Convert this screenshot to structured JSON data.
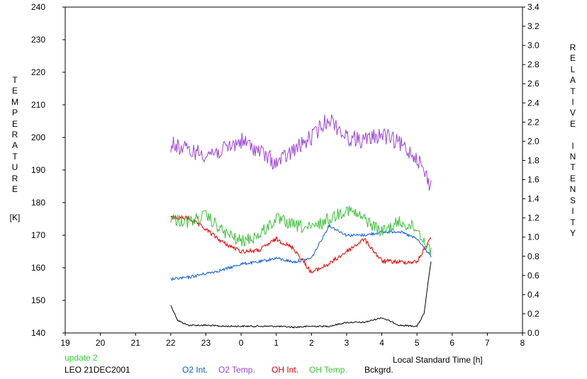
{
  "chart_data": {
    "type": "line",
    "x_axis": {
      "label": "Local Standard Time [h]",
      "ticks": [
        "19",
        "20",
        "21",
        "22",
        "23",
        "0",
        "1",
        "2",
        "3",
        "4",
        "5",
        "6",
        "7",
        "8"
      ],
      "range": [
        19,
        32
      ]
    },
    "y_left": {
      "label_letters": [
        "T",
        "E",
        "M",
        "P",
        "E",
        "R",
        "A",
        "T",
        "U",
        "R",
        "E"
      ],
      "unit": "[K]",
      "range": [
        140,
        240
      ],
      "ticks": [
        "140",
        "150",
        "160",
        "170",
        "180",
        "190",
        "200",
        "210",
        "220",
        "230",
        "240"
      ]
    },
    "y_right": {
      "label_letters": [
        "R",
        "E",
        "L",
        "A",
        "T",
        "I",
        "V",
        "E",
        "",
        "I",
        "N",
        "T",
        "E",
        "N",
        "S",
        "I",
        "T",
        "Y"
      ],
      "range": [
        0.0,
        3.4
      ],
      "ticks": [
        "0.0",
        "0.2",
        "0.4",
        "0.6",
        "0.8",
        "1.0",
        "1.2",
        "1.4",
        "1.6",
        "1.8",
        "2.0",
        "2.2",
        "2.4",
        "2.6",
        "2.8",
        "3.0",
        "3.2",
        "3.4"
      ]
    },
    "series": [
      {
        "name": "O2 Int.",
        "axis": "right",
        "color": "#0a5cd8",
        "x": [
          22.0,
          22.5,
          23.0,
          23.5,
          24.0,
          24.5,
          25.0,
          25.5,
          26.0,
          26.5,
          27.0,
          27.5,
          28.0,
          28.5,
          29.0,
          29.4
        ],
        "values": [
          0.56,
          0.58,
          0.62,
          0.66,
          0.72,
          0.74,
          0.78,
          0.74,
          0.78,
          1.12,
          1.02,
          1.02,
          1.05,
          1.06,
          0.98,
          0.8
        ]
      },
      {
        "name": "O2 Temp.",
        "axis": "left",
        "color": "#9b44d6",
        "x": [
          22.0,
          22.5,
          23.0,
          23.5,
          24.0,
          24.5,
          25.0,
          25.5,
          26.0,
          26.5,
          27.0,
          27.5,
          28.0,
          28.5,
          29.0,
          29.4
        ],
        "values": [
          198,
          196,
          195,
          196,
          199,
          196,
          192,
          196,
          200,
          206,
          200,
          199,
          201,
          198,
          194,
          185
        ]
      },
      {
        "name": "OH Int.",
        "axis": "right",
        "color": "#e00000",
        "x": [
          22.0,
          22.5,
          23.0,
          23.5,
          24.0,
          24.5,
          25.0,
          25.5,
          26.0,
          26.5,
          27.0,
          27.5,
          28.0,
          28.5,
          29.0,
          29.4
        ],
        "values": [
          1.2,
          1.2,
          1.08,
          0.94,
          0.85,
          0.86,
          0.98,
          0.88,
          0.63,
          0.72,
          0.85,
          0.98,
          0.75,
          0.74,
          0.74,
          1.0
        ]
      },
      {
        "name": "OH Temp.",
        "axis": "left",
        "color": "#3dbf3d",
        "x": [
          22.0,
          22.5,
          23.0,
          23.5,
          24.0,
          24.5,
          25.0,
          25.5,
          26.0,
          26.5,
          27.0,
          27.5,
          28.0,
          28.5,
          29.0,
          29.4
        ],
        "values": [
          175,
          174,
          176,
          171,
          168,
          170,
          175,
          173,
          172,
          175,
          178,
          175,
          171,
          174,
          172,
          165
        ]
      },
      {
        "name": "Bckgrd.",
        "axis": "right",
        "color": "#000000",
        "x": [
          22.0,
          22.2,
          22.5,
          23.0,
          23.5,
          24.0,
          24.5,
          25.0,
          25.5,
          26.0,
          26.5,
          27.0,
          27.5,
          28.0,
          28.5,
          29.0,
          29.2,
          29.4
        ],
        "values": [
          0.29,
          0.13,
          0.08,
          0.08,
          0.07,
          0.07,
          0.07,
          0.07,
          0.06,
          0.07,
          0.07,
          0.11,
          0.11,
          0.16,
          0.08,
          0.07,
          0.2,
          0.75
        ]
      }
    ]
  },
  "footer": {
    "update_label": "update 2",
    "station_date": "LEO 21DEC2001"
  },
  "colors": {
    "background": "#ffffff",
    "axis": "#000000",
    "update_text": "#33cc33"
  }
}
